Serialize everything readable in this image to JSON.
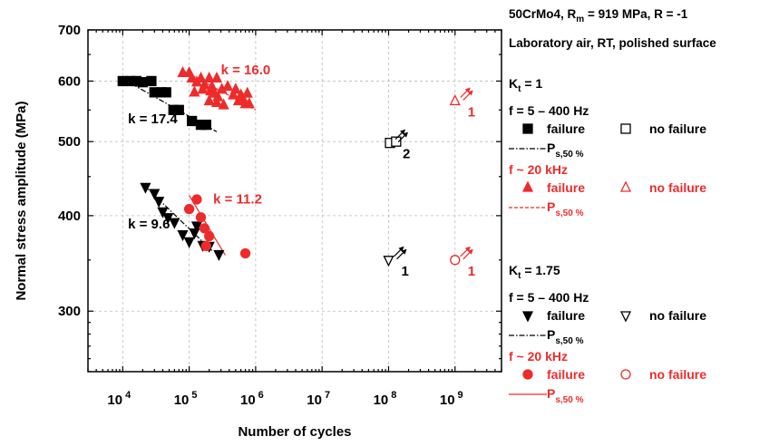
{
  "chart_data": {
    "type": "scatter",
    "xscale": "log",
    "yscale": "log",
    "xlabel": "Number of cycles",
    "ylabel": "Normal stress amplitude  (MPa)",
    "xlim": [
      3000,
      5000000000
    ],
    "ylim": [
      250,
      700
    ],
    "grid": true,
    "x_ticks": [
      {
        "value": 10000,
        "base": "10",
        "exp": "4"
      },
      {
        "value": 100000,
        "base": "10",
        "exp": "5"
      },
      {
        "value": 1000000,
        "base": "10",
        "exp": "6"
      },
      {
        "value": 10000000,
        "base": "10",
        "exp": "7"
      },
      {
        "value": 100000000,
        "base": "10",
        "exp": "8"
      },
      {
        "value": 1000000000,
        "base": "10",
        "exp": "9"
      }
    ],
    "y_ticks": [
      300,
      400,
      500,
      600,
      700
    ],
    "colors": {
      "black": "#000000",
      "red": "#ee2b2b"
    },
    "series": [
      {
        "marker": "square-filled",
        "color": "black",
        "points": [
          [
            10000,
            600
          ],
          [
            13000,
            600
          ],
          [
            16000,
            600
          ],
          [
            20000,
            598
          ],
          [
            27000,
            600
          ],
          [
            30000,
            580
          ],
          [
            38000,
            580
          ],
          [
            45000,
            580
          ],
          [
            58000,
            550
          ],
          [
            70000,
            550
          ],
          [
            110000,
            532
          ],
          [
            150000,
            526
          ],
          [
            180000,
            526
          ]
        ]
      },
      {
        "marker": "square-open",
        "color": "black",
        "points": [
          [
            105000000,
            498
          ],
          [
            130000000,
            500
          ]
        ]
      },
      {
        "marker": "triangle-up-filled",
        "color": "red",
        "points": [
          [
            80000,
            615
          ],
          [
            100000,
            615
          ],
          [
            110000,
            605
          ],
          [
            130000,
            598
          ],
          [
            150000,
            605
          ],
          [
            170000,
            593
          ],
          [
            200000,
            605
          ],
          [
            220000,
            590
          ],
          [
            260000,
            605
          ],
          [
            120000,
            580
          ],
          [
            160000,
            585
          ],
          [
            210000,
            582
          ],
          [
            240000,
            578
          ],
          [
            270000,
            572
          ],
          [
            310000,
            585
          ],
          [
            380000,
            590
          ],
          [
            460000,
            575
          ],
          [
            500000,
            585
          ],
          [
            550000,
            565
          ],
          [
            600000,
            575
          ],
          [
            650000,
            568
          ],
          [
            700000,
            560
          ],
          [
            750000,
            578
          ],
          [
            800000,
            560
          ],
          [
            200000,
            565
          ],
          [
            260000,
            562
          ],
          [
            330000,
            558
          ]
        ]
      },
      {
        "marker": "triangle-up-open",
        "color": "red",
        "points": [
          [
            1000000000,
            565
          ]
        ]
      },
      {
        "marker": "triangle-down-filled",
        "color": "black",
        "points": [
          [
            22000,
            436
          ],
          [
            30000,
            428
          ],
          [
            35000,
            418
          ],
          [
            40000,
            405
          ],
          [
            48000,
            398
          ],
          [
            60000,
            392
          ],
          [
            80000,
            378
          ],
          [
            100000,
            370
          ],
          [
            120000,
            380
          ],
          [
            130000,
            388
          ],
          [
            160000,
            366
          ],
          [
            200000,
            365
          ],
          [
            280000,
            356
          ]
        ]
      },
      {
        "marker": "triangle-down-open",
        "color": "black",
        "points": [
          [
            100000000,
            350
          ]
        ]
      },
      {
        "marker": "circle-filled",
        "color": "red",
        "points": [
          [
            100000,
            408
          ],
          [
            130000,
            420
          ],
          [
            150000,
            398
          ],
          [
            170000,
            385
          ],
          [
            200000,
            376
          ],
          [
            180000,
            365
          ],
          [
            700000,
            357
          ]
        ]
      },
      {
        "marker": "circle-open",
        "color": "red",
        "points": [
          [
            1000000000,
            350
          ]
        ]
      }
    ],
    "fit_lines": [
      {
        "style": "dash-dot",
        "color": "black",
        "from": [
          10000,
          604
        ],
        "to": [
          260000,
          515
        ]
      },
      {
        "style": "dashed",
        "color": "red",
        "from": [
          80000,
          620
        ],
        "to": [
          1000000,
          550
        ]
      },
      {
        "style": "dash-dot",
        "color": "black",
        "from": [
          20000,
          440
        ],
        "to": [
          220000,
          360
        ]
      },
      {
        "style": "solid",
        "color": "red",
        "from": [
          100000,
          425
        ],
        "to": [
          350000,
          355
        ]
      }
    ],
    "runout_arrows": [
      {
        "at": [
          105000000,
          498
        ],
        "color": "black",
        "label": "2"
      },
      {
        "at": [
          100000000,
          350
        ],
        "color": "black",
        "label": "1"
      },
      {
        "at": [
          1000000000,
          565
        ],
        "color": "red",
        "label": "1"
      },
      {
        "at": [
          1000000000,
          350
        ],
        "color": "red",
        "label": "1"
      }
    ],
    "annotations": [
      {
        "text": "k = 17.4",
        "color": "black",
        "at": [
          12000,
          528
        ]
      },
      {
        "text": "k = 16.0",
        "color": "red",
        "at": [
          300000,
          612
        ]
      },
      {
        "text": "k = 11.2",
        "color": "red",
        "at": [
          230000,
          415
        ]
      },
      {
        "text": "k = 9.6",
        "color": "black",
        "at": [
          12000,
          385
        ]
      }
    ],
    "legend": {
      "position": "right",
      "header_line1": {
        "base": "50CrMo4, R",
        "sub": "m",
        "rest": " = 919 MPa, R = -1"
      },
      "header_line2": "Laboratory air, RT, polished surface",
      "groups": [
        {
          "kt": {
            "base": "K",
            "sub": "t",
            "rest": " = 1"
          },
          "entries": [
            {
              "freq": "f = 5 – 400 Hz",
              "color": "black",
              "fail_marker": "square-filled",
              "runout_marker": "square-open",
              "line_style": "dash-dot"
            },
            {
              "freq": "f ~ 20 kHz",
              "color": "red",
              "fail_marker": "triangle-up-filled",
              "runout_marker": "triangle-up-open",
              "line_style": "dashed"
            }
          ]
        },
        {
          "kt": {
            "base": "K",
            "sub": "t",
            "rest": " = 1.75"
          },
          "entries": [
            {
              "freq": "f = 5 – 400 Hz",
              "color": "black",
              "fail_marker": "triangle-down-filled",
              "runout_marker": "triangle-down-open",
              "line_style": "dash-dot"
            },
            {
              "freq": "f ~ 20 kHz",
              "color": "red",
              "fail_marker": "circle-filled",
              "runout_marker": "circle-open",
              "line_style": "solid"
            }
          ]
        }
      ],
      "failure_label": "failure",
      "nofailure_label": "no failure",
      "line_label": {
        "base": "P",
        "sub": "s,50 %"
      }
    }
  }
}
